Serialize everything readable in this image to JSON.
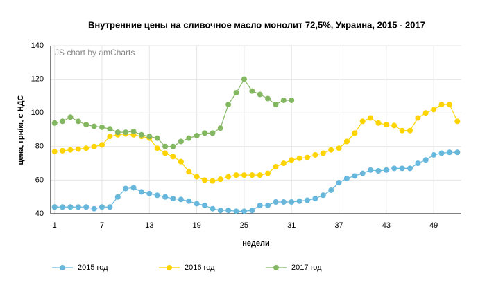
{
  "chart_data": {
    "type": "line",
    "title": "Внутренние цены на сливочное масло монолит 72,5%, Украина, 2015 - 2017",
    "watermark": "JS chart by amCharts",
    "x_label": "недели",
    "y_label": "цена, грн/кг, с НДС",
    "x": [
      1,
      2,
      3,
      4,
      5,
      6,
      7,
      8,
      9,
      10,
      11,
      12,
      13,
      14,
      15,
      16,
      17,
      18,
      19,
      20,
      21,
      22,
      23,
      24,
      25,
      26,
      27,
      28,
      29,
      30,
      31,
      32,
      33,
      34,
      35,
      36,
      37,
      38,
      39,
      40,
      41,
      42,
      43,
      44,
      45,
      46,
      47,
      48,
      49,
      50,
      51,
      52
    ],
    "series": [
      {
        "name": "2015 год",
        "color": "#67b7dc",
        "values": [
          44,
          44,
          44,
          44,
          44,
          43,
          44,
          44,
          50,
          55,
          55.5,
          53,
          52,
          51,
          50,
          49,
          48.5,
          47.5,
          46,
          45,
          43,
          42,
          42,
          41.5,
          41.5,
          42,
          45,
          45,
          47,
          47,
          47,
          47.5,
          48,
          49,
          51,
          54,
          58.5,
          61,
          62.5,
          64,
          66,
          65.5,
          66,
          67,
          67,
          67,
          70,
          72,
          75,
          76,
          76.5,
          76.5
        ]
      },
      {
        "name": "2016 год",
        "color": "#fdd400",
        "values": [
          77,
          77.5,
          78,
          78.5,
          79,
          80,
          81,
          86,
          87,
          87.5,
          87,
          86,
          85,
          79,
          76,
          74,
          71,
          65,
          62,
          60,
          59.5,
          60.5,
          62,
          63,
          63,
          63,
          63,
          64,
          68,
          70,
          72,
          73,
          73.5,
          75,
          76,
          78,
          79,
          83,
          88,
          95,
          97,
          94,
          93,
          92.5,
          89.5,
          89.5,
          97,
          100,
          102,
          105,
          105,
          95
        ]
      },
      {
        "name": "2017 год",
        "color": "#84b761",
        "values": [
          94,
          95,
          97.5,
          95,
          93,
          92,
          91.5,
          90.5,
          88.5,
          88.5,
          89,
          87,
          86,
          85,
          80,
          80,
          83,
          85,
          86.5,
          88,
          88,
          91,
          105,
          112,
          120,
          113,
          111,
          108.5,
          105,
          107.5,
          107.5,
          null,
          null,
          null,
          null,
          null,
          null,
          null,
          null,
          null,
          null,
          null,
          null,
          null,
          null,
          null,
          null,
          null,
          null,
          null,
          null,
          null
        ]
      }
    ],
    "xlim": [
      0.5,
      52.5
    ],
    "xticks": [
      1,
      7,
      13,
      19,
      25,
      31,
      37,
      43,
      49
    ],
    "ylim": [
      40,
      140
    ],
    "yticks": [
      40,
      60,
      80,
      100,
      120,
      140
    ],
    "grid": true
  }
}
